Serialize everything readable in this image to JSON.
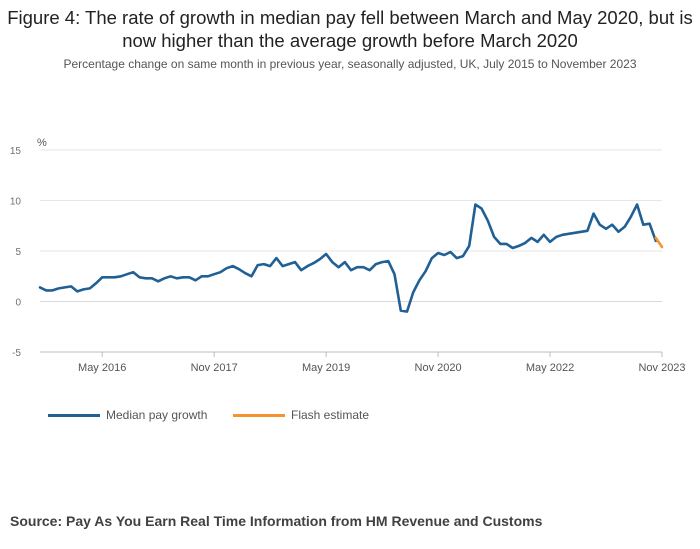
{
  "title": "Figure 4: The rate of growth in median pay fell between March and May 2020, but is now higher than the average growth before March 2020",
  "subtitle": "Percentage change on same month in previous year, seasonally adjusted, UK, July 2015 to November 2023",
  "source": "Source: Pay As You Earn Real Time Information from HM Revenue and Customs",
  "chart_data": {
    "type": "line",
    "title": "Figure 4: The rate of growth in median pay fell between March and May 2020, but is now higher than the average growth before March 2020",
    "ylabel": "%",
    "ylim": [
      -5,
      15
    ],
    "yticks": [
      -5,
      0,
      5,
      10,
      15
    ],
    "x_start": "2015-07",
    "x_end": "2023-11",
    "xticks": [
      {
        "month": "2016-05",
        "label": "May 2016"
      },
      {
        "month": "2017-11",
        "label": "Nov 2017"
      },
      {
        "month": "2019-05",
        "label": "May 2019"
      },
      {
        "month": "2020-11",
        "label": "Nov 2020"
      },
      {
        "month": "2022-05",
        "label": "May 2022"
      },
      {
        "month": "2023-11",
        "label": "Nov 2023"
      }
    ],
    "grid": true,
    "legend": "bottom-left",
    "series": [
      {
        "name": "Median pay growth",
        "color": "#206095",
        "points": [
          [
            "2015-07",
            1.4
          ],
          [
            "2015-08",
            1.1
          ],
          [
            "2015-09",
            1.1
          ],
          [
            "2015-10",
            1.3
          ],
          [
            "2015-11",
            1.4
          ],
          [
            "2015-12",
            1.5
          ],
          [
            "2016-01",
            1.0
          ],
          [
            "2016-02",
            1.2
          ],
          [
            "2016-03",
            1.3
          ],
          [
            "2016-04",
            1.8
          ],
          [
            "2016-05",
            2.4
          ],
          [
            "2016-06",
            2.4
          ],
          [
            "2016-07",
            2.4
          ],
          [
            "2016-08",
            2.5
          ],
          [
            "2016-09",
            2.7
          ],
          [
            "2016-10",
            2.9
          ],
          [
            "2016-11",
            2.4
          ],
          [
            "2016-12",
            2.3
          ],
          [
            "2017-01",
            2.3
          ],
          [
            "2017-02",
            2.0
          ],
          [
            "2017-03",
            2.3
          ],
          [
            "2017-04",
            2.5
          ],
          [
            "2017-05",
            2.3
          ],
          [
            "2017-06",
            2.4
          ],
          [
            "2017-07",
            2.4
          ],
          [
            "2017-08",
            2.1
          ],
          [
            "2017-09",
            2.5
          ],
          [
            "2017-10",
            2.5
          ],
          [
            "2017-11",
            2.7
          ],
          [
            "2017-12",
            2.9
          ],
          [
            "2018-01",
            3.3
          ],
          [
            "2018-02",
            3.5
          ],
          [
            "2018-03",
            3.2
          ],
          [
            "2018-04",
            2.8
          ],
          [
            "2018-05",
            2.5
          ],
          [
            "2018-06",
            3.6
          ],
          [
            "2018-07",
            3.7
          ],
          [
            "2018-08",
            3.5
          ],
          [
            "2018-09",
            4.3
          ],
          [
            "2018-10",
            3.5
          ],
          [
            "2018-11",
            3.7
          ],
          [
            "2018-12",
            3.9
          ],
          [
            "2019-01",
            3.1
          ],
          [
            "2019-02",
            3.5
          ],
          [
            "2019-03",
            3.8
          ],
          [
            "2019-04",
            4.2
          ],
          [
            "2019-05",
            4.7
          ],
          [
            "2019-06",
            3.9
          ],
          [
            "2019-07",
            3.4
          ],
          [
            "2019-08",
            3.9
          ],
          [
            "2019-09",
            3.1
          ],
          [
            "2019-10",
            3.4
          ],
          [
            "2019-11",
            3.4
          ],
          [
            "2019-12",
            3.1
          ],
          [
            "2020-01",
            3.7
          ],
          [
            "2020-02",
            3.9
          ],
          [
            "2020-03",
            4.0
          ],
          [
            "2020-04",
            2.7
          ],
          [
            "2020-05",
            -0.9
          ],
          [
            "2020-06",
            -1.0
          ],
          [
            "2020-07",
            0.9
          ],
          [
            "2020-08",
            2.1
          ],
          [
            "2020-09",
            3.0
          ],
          [
            "2020-10",
            4.3
          ],
          [
            "2020-11",
            4.8
          ],
          [
            "2020-12",
            4.6
          ],
          [
            "2021-01",
            4.9
          ],
          [
            "2021-02",
            4.3
          ],
          [
            "2021-03",
            4.5
          ],
          [
            "2021-04",
            5.5
          ],
          [
            "2021-05",
            9.6
          ],
          [
            "2021-06",
            9.2
          ],
          [
            "2021-07",
            8.0
          ],
          [
            "2021-08",
            6.4
          ],
          [
            "2021-09",
            5.7
          ],
          [
            "2021-10",
            5.7
          ],
          [
            "2021-11",
            5.3
          ],
          [
            "2021-12",
            5.5
          ],
          [
            "2022-01",
            5.8
          ],
          [
            "2022-02",
            6.3
          ],
          [
            "2022-03",
            5.9
          ],
          [
            "2022-04",
            6.6
          ],
          [
            "2022-05",
            5.9
          ],
          [
            "2022-06",
            6.4
          ],
          [
            "2022-07",
            6.6
          ],
          [
            "2022-08",
            6.7
          ],
          [
            "2022-09",
            6.8
          ],
          [
            "2022-10",
            6.9
          ],
          [
            "2022-11",
            7.0
          ],
          [
            "2022-12",
            8.7
          ],
          [
            "2023-01",
            7.6
          ],
          [
            "2023-02",
            7.2
          ],
          [
            "2023-03",
            7.6
          ],
          [
            "2023-04",
            6.9
          ],
          [
            "2023-05",
            7.4
          ],
          [
            "2023-06",
            8.4
          ],
          [
            "2023-07",
            9.6
          ],
          [
            "2023-08",
            7.6
          ],
          [
            "2023-09",
            7.7
          ],
          [
            "2023-10",
            6.0
          ]
        ]
      },
      {
        "name": "Flash estimate",
        "color": "#f39431",
        "points": [
          [
            "2023-10",
            6.3
          ],
          [
            "2023-11",
            5.4
          ]
        ]
      }
    ]
  }
}
